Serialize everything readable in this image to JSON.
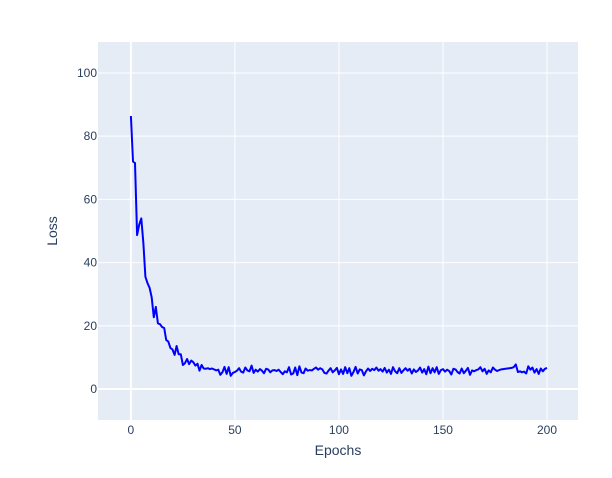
{
  "chart_data": {
    "type": "line",
    "title": "",
    "xlabel": "Epochs",
    "ylabel": "Loss",
    "xlim": [
      -15.8,
      214.9
    ],
    "ylim": [
      -9.8,
      109.8
    ],
    "xticks": [
      0,
      50,
      100,
      150,
      200
    ],
    "yticks": [
      0,
      20,
      40,
      60,
      80,
      100
    ],
    "grid": true,
    "background": "#e5ecf6",
    "line_color": "#0000ff",
    "series": [
      {
        "x_start": 0,
        "x_step": 1,
        "values": [
          86.4,
          72,
          71.5,
          48.7,
          52,
          54,
          46,
          35.5,
          33.5,
          32,
          29,
          22.7,
          26,
          20.8,
          20.5,
          19.6,
          19.3,
          15.5,
          15,
          13,
          12.5,
          10.8,
          13.6,
          11,
          11,
          7.6,
          8.2,
          9.5,
          7.9,
          9,
          8.5,
          7.4,
          8,
          5.8,
          7.6,
          6.5,
          6.4,
          6.6,
          6.3,
          6.5,
          6.2,
          5.9,
          6.1,
          4.5,
          5.3,
          7.0,
          4.8,
          6.9,
          4.2,
          5.1,
          5.4,
          5.8,
          6.6,
          5.5,
          5.2,
          6.8,
          5.9,
          5.6,
          7.4,
          5.1,
          6.1,
          5.5,
          6.3,
          5.8,
          5.0,
          6.4,
          6.2,
          5.3,
          5.9,
          6.0,
          5.7,
          6.1,
          5.4,
          4.7,
          5.6,
          5.3,
          6.9,
          4.6,
          4.9,
          6.8,
          4.4,
          7.2,
          5.2,
          5.0,
          6.5,
          5.8,
          6.0,
          5.9,
          6.4,
          6.8,
          6.1,
          6.6,
          6.2,
          5.1,
          4.9,
          5.8,
          6.6,
          5.3,
          5.9,
          6.7,
          4.7,
          6.2,
          4.8,
          6.9,
          5.0,
          6.6,
          4.2,
          5.4,
          7.0,
          4.9,
          6.2,
          6.0,
          4.3,
          5.6,
          6.5,
          5.7,
          6.4,
          6.0,
          6.8,
          5.8,
          6.3,
          5.5,
          6.7,
          5.2,
          6.1,
          4.8,
          6.9,
          5.6,
          5.0,
          6.6,
          5.1,
          5.9,
          6.6,
          5.8,
          6.4,
          4.9,
          6.2,
          5.4,
          5.9,
          6.8,
          5.2,
          6.3,
          4.7,
          7.1,
          5.0,
          6.6,
          5.3,
          6.9,
          4.8,
          6.0,
          6.3,
          5.5,
          6.1,
          5.7,
          4.6,
          6.4,
          6.2,
          5.4,
          4.9,
          6.5,
          5.0,
          5.8,
          6.7,
          4.5,
          5.9,
          5.6,
          6.0,
          6.2,
          6.9,
          5.6,
          6.4,
          4.8,
          5.9,
          5.3,
          6.8,
          6.1,
          5.7,
          6.0,
          6.2,
          6.3,
          6.4,
          6.5,
          6.6,
          6.7,
          6.9,
          7.8,
          5.4,
          5.6,
          5.3,
          5.5,
          4.9,
          7.2,
          6.1,
          6.8,
          5.2,
          6.3,
          4.8,
          6.5,
          5.6,
          6.4,
          6.7
        ]
      }
    ]
  }
}
